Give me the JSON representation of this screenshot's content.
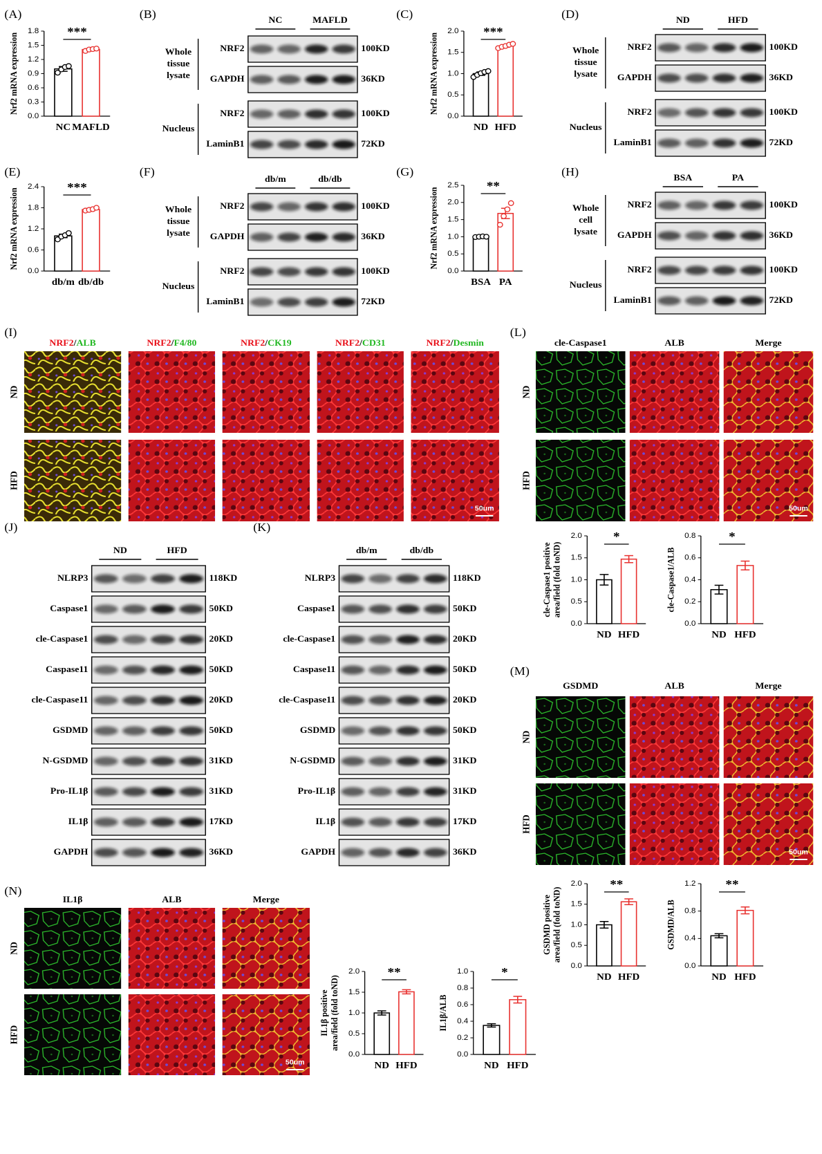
{
  "chart_data": [
    {
      "type": "bar",
      "panel": "(A)",
      "ylabel": [
        "Nrf2 mRNA expression"
      ],
      "categories": [
        "NC",
        "MAFLD"
      ],
      "values": [
        1.0,
        1.41
      ],
      "errors": [
        0.05,
        0.02
      ],
      "points": [
        [
          0.92,
          0.99,
          1.04,
          1.06
        ],
        [
          1.38,
          1.41,
          1.42,
          1.43
        ]
      ],
      "significance": "***",
      "colors": [
        "#000000",
        "#e8312f"
      ],
      "ylim": [
        0,
        1.8
      ],
      "yticks": [
        {
          "value": 0,
          "label": "0.0"
        },
        0.3,
        0.6,
        0.9,
        1.2,
        1.5,
        1.8
      ]
    },
    {
      "type": "bar",
      "panel": "(C)",
      "ylabel": [
        "Nrf2 mRNA expression"
      ],
      "categories": [
        "ND",
        "HFD"
      ],
      "values": [
        1.0,
        1.65
      ],
      "errors": [
        0.04,
        0.03
      ],
      "points": [
        [
          0.92,
          0.97,
          1.01,
          1.04,
          1.06
        ],
        [
          1.6,
          1.63,
          1.65,
          1.68,
          1.7
        ]
      ],
      "significance": "***",
      "colors": [
        "#000000",
        "#e8312f"
      ],
      "ylim": [
        0,
        2
      ],
      "yticks": [
        {
          "value": 0,
          "label": "0.0"
        },
        0.5,
        {
          "value": 1,
          "label": "1.0"
        },
        1.5,
        {
          "value": 2,
          "label": "2.0"
        }
      ]
    },
    {
      "type": "bar",
      "panel": "(E)",
      "ylabel": [
        "Nrf2 mRNA expression"
      ],
      "categories": [
        "db/m",
        "db/db"
      ],
      "values": [
        1.0,
        1.75
      ],
      "errors": [
        0.05,
        0.03
      ],
      "points": [
        [
          0.9,
          0.98,
          1.02,
          1.08
        ],
        [
          1.72,
          1.74,
          1.76,
          1.8
        ]
      ],
      "significance": "***",
      "colors": [
        "#000000",
        "#e8312f"
      ],
      "ylim": [
        0,
        2.4
      ],
      "yticks": [
        {
          "value": 0,
          "label": "0.0"
        },
        0.6,
        1.2,
        1.8,
        2.4
      ]
    },
    {
      "type": "bar",
      "panel": "(G)",
      "ylabel": [
        "Nrf2 mRNA expression"
      ],
      "categories": [
        "BSA",
        "PA"
      ],
      "values": [
        1.0,
        1.68
      ],
      "errors": [
        0.01,
        0.15
      ],
      "points": [
        [
          0.99,
          1.0,
          1.01,
          1.0
        ],
        [
          1.35,
          1.6,
          1.8,
          1.98
        ]
      ],
      "significance": "**",
      "colors": [
        "#000000",
        "#e8312f"
      ],
      "ylim": [
        0,
        2.5
      ],
      "yticks": [
        {
          "value": 0,
          "label": "0.0"
        },
        0.5,
        {
          "value": 1,
          "label": "1.0"
        },
        1.5,
        {
          "value": 2,
          "label": "2.0"
        },
        2.5
      ]
    },
    {
      "type": "bar",
      "ylabel": [
        "cle-Caspase1 positive",
        "area/field (fold toND)"
      ],
      "categories": [
        "ND",
        "HFD"
      ],
      "values": [
        1.0,
        1.47
      ],
      "errors": [
        0.12,
        0.08
      ],
      "significance": "*",
      "colors": [
        "#000000",
        "#e8312f"
      ],
      "ylim": [
        0,
        2
      ],
      "yticks": [
        {
          "value": 0,
          "label": "0.0"
        },
        0.5,
        {
          "value": 1,
          "label": "1.0"
        },
        1.5,
        {
          "value": 2,
          "label": "2.0"
        }
      ]
    },
    {
      "type": "bar",
      "ylabel": [
        "cle-Caspase1/ALB"
      ],
      "categories": [
        "ND",
        "HFD"
      ],
      "values": [
        0.31,
        0.53
      ],
      "errors": [
        0.04,
        0.04
      ],
      "significance": "*",
      "colors": [
        "#000000",
        "#e8312f"
      ],
      "ylim": [
        0,
        0.8
      ],
      "yticks": [
        {
          "value": 0,
          "label": "0.0"
        },
        0.2,
        0.4,
        0.6,
        0.8
      ]
    },
    {
      "type": "bar",
      "ylabel": [
        "GSDMD positive",
        "area/field (fold toND)"
      ],
      "categories": [
        "ND",
        "HFD"
      ],
      "values": [
        1.0,
        1.56
      ],
      "errors": [
        0.08,
        0.07
      ],
      "significance": "**",
      "colors": [
        "#000000",
        "#e8312f"
      ],
      "ylim": [
        0,
        2
      ],
      "yticks": [
        {
          "value": 0,
          "label": "0.0"
        },
        0.5,
        {
          "value": 1,
          "label": "1.0"
        },
        1.5,
        {
          "value": 2,
          "label": "2.0"
        }
      ]
    },
    {
      "type": "bar",
      "ylabel": [
        "GSDMD/ALB"
      ],
      "categories": [
        "ND",
        "HFD"
      ],
      "values": [
        0.44,
        0.81
      ],
      "errors": [
        0.03,
        0.05
      ],
      "significance": "**",
      "colors": [
        "#000000",
        "#e8312f"
      ],
      "ylim": [
        0,
        1.2
      ],
      "yticks": [
        {
          "value": 0,
          "label": "0.0"
        },
        0.4,
        0.8,
        1.2
      ]
    },
    {
      "type": "bar",
      "ylabel": [
        "IL1β positive",
        "area/field (fold toND)"
      ],
      "categories": [
        "ND",
        "HFD"
      ],
      "values": [
        1.0,
        1.51
      ],
      "errors": [
        0.05,
        0.05
      ],
      "significance": "**",
      "colors": [
        "#000000",
        "#e8312f"
      ],
      "ylim": [
        0,
        2
      ],
      "yticks": [
        {
          "value": 0,
          "label": "0.0"
        },
        0.5,
        {
          "value": 1,
          "label": "1.0"
        },
        1.5,
        {
          "value": 2,
          "label": "2.0"
        }
      ]
    },
    {
      "type": "bar",
      "ylabel": [
        "IL1β/ALB"
      ],
      "categories": [
        "ND",
        "HFD"
      ],
      "values": [
        0.35,
        0.66
      ],
      "errors": [
        0.02,
        0.04
      ],
      "significance": "*",
      "colors": [
        "#000000",
        "#e8312f"
      ],
      "ylim": [
        0,
        1
      ],
      "yticks": [
        {
          "value": 0,
          "label": "0.0"
        },
        0.2,
        0.4,
        0.6,
        0.8,
        {
          "value": 1,
          "label": "1.0"
        }
      ]
    }
  ],
  "blots": [
    {
      "panel": "(B)",
      "groups": [
        "NC",
        "MAFLD"
      ],
      "sections": [
        {
          "label": [
            "Whole",
            "tissue",
            "lysate"
          ],
          "rows": [
            {
              "protein": "NRF2",
              "size": "100KD"
            },
            {
              "protein": "GAPDH",
              "size": "36KD"
            }
          ]
        },
        {
          "label": [
            "Nucleus"
          ],
          "rows": [
            {
              "protein": "NRF2",
              "size": "100KD"
            },
            {
              "protein": "LaminB1",
              "size": "72KD"
            }
          ]
        }
      ]
    },
    {
      "panel": "(D)",
      "groups": [
        "ND",
        "HFD"
      ],
      "sections": [
        {
          "label": [
            "Whole",
            "tissue",
            "lysate"
          ],
          "rows": [
            {
              "protein": "NRF2",
              "size": "100KD"
            },
            {
              "protein": "GAPDH",
              "size": "36KD"
            }
          ]
        },
        {
          "label": [
            "Nucleus"
          ],
          "rows": [
            {
              "protein": "NRF2",
              "size": "100KD"
            },
            {
              "protein": "LaminB1",
              "size": "72KD"
            }
          ]
        }
      ]
    },
    {
      "panel": "(F)",
      "groups": [
        "db/m",
        "db/db"
      ],
      "sections": [
        {
          "label": [
            "Whole",
            "tissue",
            "lysate"
          ],
          "rows": [
            {
              "protein": "NRF2",
              "size": "100KD"
            },
            {
              "protein": "GAPDH",
              "size": "36KD"
            }
          ]
        },
        {
          "label": [
            "Nucleus"
          ],
          "rows": [
            {
              "protein": "NRF2",
              "size": "100KD"
            },
            {
              "protein": "LaminB1",
              "size": "72KD"
            }
          ]
        }
      ]
    },
    {
      "panel": "(H)",
      "groups": [
        "BSA",
        "PA"
      ],
      "sections": [
        {
          "label": [
            "Whole",
            "cell",
            "lysate"
          ],
          "rows": [
            {
              "protein": "NRF2",
              "size": "100KD"
            },
            {
              "protein": "GAPDH",
              "size": "36KD"
            }
          ]
        },
        {
          "label": [
            "Nucleus"
          ],
          "rows": [
            {
              "protein": "NRF2",
              "size": "100KD"
            },
            {
              "protein": "LaminB1",
              "size": "72KD"
            }
          ]
        }
      ]
    },
    {
      "panel": "(J)",
      "groups": [
        "ND",
        "HFD"
      ],
      "sections": [
        {
          "rows": [
            {
              "protein": "NLRP3",
              "size": "118KD"
            },
            {
              "protein": "Caspase1",
              "size": "50KD"
            },
            {
              "protein": "cle-Caspase1",
              "size": "20KD"
            },
            {
              "protein": "Caspase11",
              "size": "50KD"
            },
            {
              "protein": "cle-Caspase11",
              "size": "20KD"
            },
            {
              "protein": "GSDMD",
              "size": "50KD"
            },
            {
              "protein": "N-GSDMD",
              "size": "31KD"
            },
            {
              "protein": "Pro-IL1β",
              "size": "31KD"
            },
            {
              "protein": "IL1β",
              "size": "17KD"
            },
            {
              "protein": "GAPDH",
              "size": "36KD"
            }
          ]
        }
      ]
    },
    {
      "panel": "(K)",
      "groups": [
        "db/m",
        "db/db"
      ],
      "sections": [
        {
          "rows": [
            {
              "protein": "NLRP3",
              "size": "118KD"
            },
            {
              "protein": "Caspase1",
              "size": "50KD"
            },
            {
              "protein": "cle-Caspase1",
              "size": "20KD"
            },
            {
              "protein": "Caspase11",
              "size": "50KD"
            },
            {
              "protein": "cle-Caspase11",
              "size": "20KD"
            },
            {
              "protein": "GSDMD",
              "size": "50KD"
            },
            {
              "protein": "N-GSDMD",
              "size": "31KD"
            },
            {
              "protein": "Pro-IL1β",
              "size": "31KD"
            },
            {
              "protein": "IL1β",
              "size": "17KD"
            },
            {
              "protein": "GAPDH",
              "size": "36KD"
            }
          ]
        }
      ]
    }
  ],
  "immunofluorescence": [
    {
      "panel": "(I)",
      "column_titles": [
        [
          "NRF2",
          "/",
          "ALB"
        ],
        [
          "NRF2",
          "/",
          "F4/80"
        ],
        [
          "NRF2",
          "/",
          "CK19"
        ],
        [
          "NRF2",
          "/",
          "CD31"
        ],
        [
          "NRF2",
          "/",
          "Desmin"
        ]
      ],
      "row_labels": [
        "ND",
        "HFD"
      ],
      "scale_bar": "50um"
    },
    {
      "panel": "(L)",
      "column_titles": [
        "cle-Caspase1",
        "ALB",
        "Merge"
      ],
      "row_labels": [
        "ND",
        "HFD"
      ],
      "scale_bar": "50um"
    },
    {
      "panel": "(M)",
      "column_titles": [
        "GSDMD",
        "ALB",
        "Merge"
      ],
      "row_labels": [
        "ND",
        "HFD"
      ],
      "scale_bar": "50um"
    },
    {
      "panel": "(N)",
      "column_titles": [
        "IL1β",
        "ALB",
        "Merge"
      ],
      "row_labels": [
        "ND",
        "HFD"
      ],
      "scale_bar": "50um"
    }
  ]
}
